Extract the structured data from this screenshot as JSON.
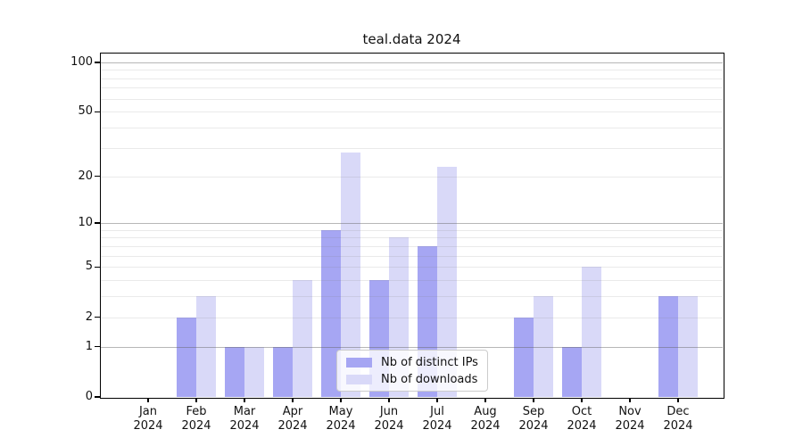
{
  "chart": {
    "title": "teal.data 2024"
  },
  "chart_data": {
    "type": "bar",
    "title": "teal.data 2024",
    "categories": [
      "Jan 2024",
      "Feb 2024",
      "Mar 2024",
      "Apr 2024",
      "May 2024",
      "Jun 2024",
      "Jul 2024",
      "Aug 2024",
      "Sep 2024",
      "Oct 2024",
      "Nov 2024",
      "Dec 2024"
    ],
    "series": [
      {
        "name": "Nb of distinct IPs",
        "color": "#a6a6f3",
        "values": [
          0,
          2,
          1,
          1,
          9,
          4,
          7,
          0,
          2,
          1,
          0,
          3
        ]
      },
      {
        "name": "Nb of downloads",
        "color": "#d9d9f8",
        "values": [
          0,
          3,
          1,
          4,
          28,
          8,
          23,
          0,
          3,
          5,
          0,
          3
        ]
      }
    ],
    "xlabel": "",
    "ylabel": "",
    "yscale": "log1p",
    "ylim": [
      0,
      113
    ],
    "y_ticks": [
      0,
      1,
      2,
      5,
      10,
      20,
      50,
      100
    ],
    "y_major_gridlines": [
      1,
      10,
      100
    ],
    "y_minor_gridlines": [
      2,
      3,
      4,
      5,
      6,
      7,
      8,
      9,
      20,
      30,
      40,
      50,
      60,
      70,
      80,
      90
    ],
    "grid": "on",
    "legend_position": "lower center inside"
  }
}
